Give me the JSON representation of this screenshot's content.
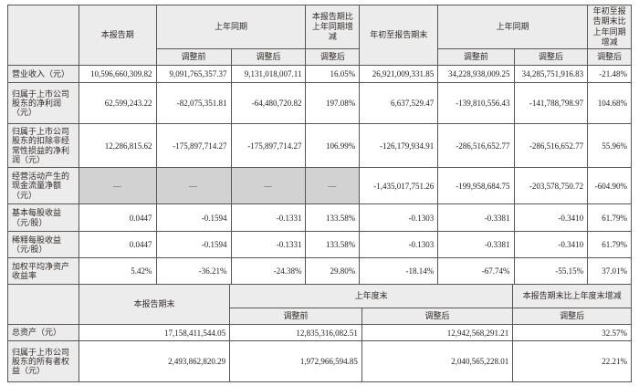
{
  "top_table": {
    "header": {
      "corner": "",
      "current_period": "本报告期",
      "prior_period": "上年同期",
      "yoy_change": "本报告期比上年同期增减",
      "ytd": "年初至报告期末",
      "prior_period_right": "上年同期",
      "ytd_change": "年初至报告期末比上年同期增减",
      "adjusted_before": "调整前",
      "adjusted_after": "调整后"
    },
    "rows": [
      {
        "label": "营业收入（元）",
        "values": [
          "10,596,660,309.82",
          "9,091,765,357.37",
          "9,131,018,007.11",
          "16.05%",
          "26,921,009,331.85",
          "34,228,938,009.25",
          "34,285,751,916.83",
          "-21.48%"
        ],
        "dash_cols": []
      },
      {
        "label": "归属于上市公司股东的净利润（元）",
        "values": [
          "62,599,243.22",
          "-82,075,351.81",
          "-64,480,720.82",
          "197.08%",
          "6,637,529.47",
          "-139,810,556.43",
          "-141,788,798.97",
          "104.68%"
        ],
        "dash_cols": []
      },
      {
        "label": "归属于上市公司股东的扣除非经常性损益的净利润（元）",
        "values": [
          "12,286,815.62",
          "-175,897,714.27",
          "-175,897,714.27",
          "106.99%",
          "-126,179,934.91",
          "-286,516,652.77",
          "-286,516,652.77",
          "55.96%"
        ],
        "dash_cols": []
      },
      {
        "label": "经营活动产生的现金流量净额（元）",
        "values": [
          "—",
          "—",
          "—",
          "—",
          "-1,435,017,751.26",
          "-199,958,684.75",
          "-203,578,750.72",
          "-604.90%"
        ],
        "dash_cols": [
          0,
          1,
          2,
          3
        ]
      },
      {
        "label": "基本每股收益（元/股）",
        "values": [
          "0.0447",
          "-0.1594",
          "-0.1331",
          "133.58%",
          "-0.1303",
          "-0.3381",
          "-0.3410",
          "61.79%"
        ],
        "dash_cols": []
      },
      {
        "label": "稀释每股收益（元/股）",
        "values": [
          "0.0447",
          "-0.1594",
          "-0.1331",
          "133.58%",
          "-0.1303",
          "-0.3381",
          "-0.3410",
          "61.79%"
        ],
        "dash_cols": []
      },
      {
        "label": "加权平均净资产收益率",
        "values": [
          "5.42%",
          "-36.21%",
          "-24.38%",
          "29.80%",
          "-18.14%",
          "-67.74%",
          "-55.15%",
          "37.01%"
        ],
        "dash_cols": []
      }
    ]
  },
  "bottom_table": {
    "header": {
      "corner": "",
      "period_end": "本报告期末",
      "prior_year_end": "上年度末",
      "period_end_change": "本报告期末比上年度末增减",
      "adjusted_before": "调整前",
      "adjusted_after": "调整后"
    },
    "rows": [
      {
        "label": "总资产（元）",
        "values": [
          "17,158,411,544.05",
          "12,835,316,082.51",
          "12,942,568,291.21",
          "32.57%"
        ],
        "dash_cols": []
      },
      {
        "label": "归属于上市公司股东的所有者权益（元）",
        "values": [
          "2,493,862,820.29",
          "1,972,966,594.85",
          "2,040,565,228.01",
          "22.21%"
        ],
        "dash_cols": []
      }
    ]
  }
}
